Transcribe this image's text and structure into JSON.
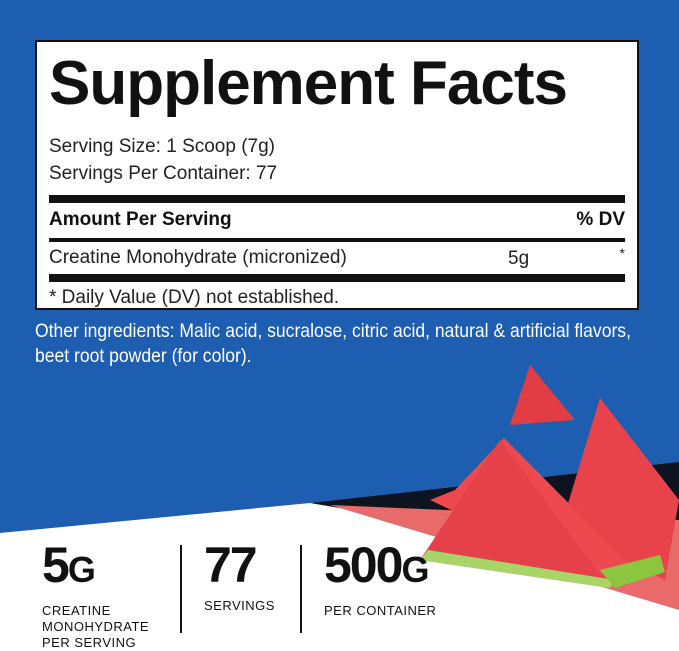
{
  "facts": {
    "title": "Supplement Facts",
    "serving_size": "Serving Size: 1 Scoop (7g)",
    "servings_per_container": "Servings Per Container: 77",
    "amount_header": "Amount Per Serving",
    "dv_header": "% DV",
    "ingredient": {
      "name": "Creatine Monohydrate (micronized)",
      "amount": "5g",
      "dv": "*"
    },
    "footnote": "* Daily Value (DV) not established."
  },
  "other_ingredients": "Other ingredients: Malic acid, sucralose, citric acid, natural & artificial flavors, beet root powder (for color).",
  "stats": [
    {
      "value": "5",
      "unit": "G",
      "label": "CREATINE MONOHYDRATE PER SERVING"
    },
    {
      "value": "77",
      "unit": "",
      "label": "SERVINGS"
    },
    {
      "value": "500",
      "unit": "G",
      "label": "PER CONTAINER"
    }
  ],
  "colors": {
    "background_blue": "#1d5eb0",
    "watermelon": "#e8434a",
    "rind": "#8cc63f"
  }
}
